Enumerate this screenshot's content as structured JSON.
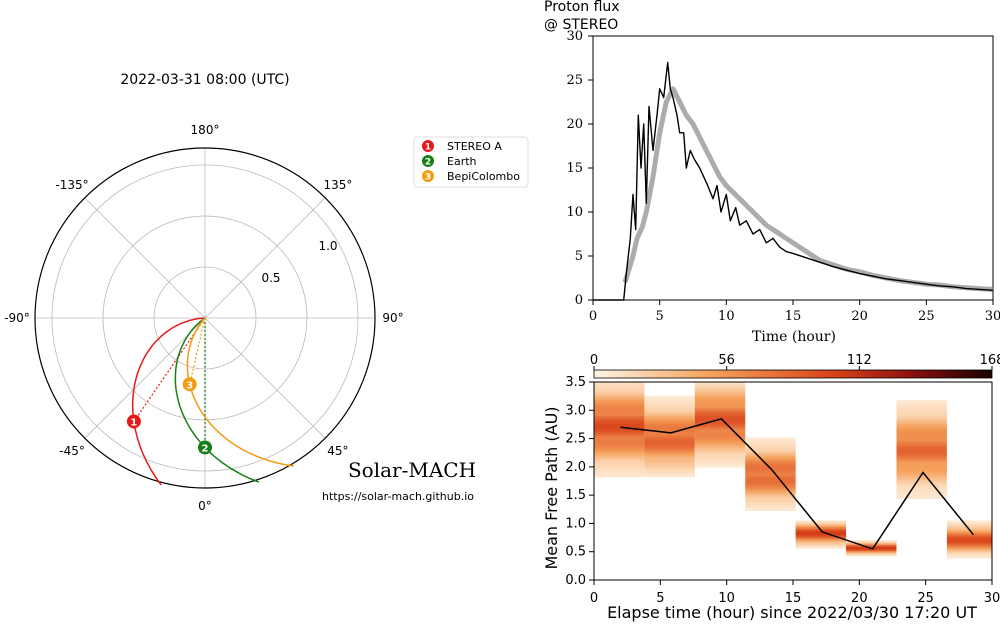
{
  "chart_data": [
    {
      "type": "polar",
      "title": "2022-03-31 08:00 (UTC)",
      "angle_labels": [
        "180°",
        "135°",
        "90°",
        "45°",
        "0°",
        "-45°",
        "-90°",
        "-135°"
      ],
      "radial_labels": [
        "0.5",
        "1.0"
      ],
      "rlim": [
        0,
        1.3
      ],
      "grid": true,
      "legend": {
        "position": "right",
        "entries": [
          {
            "num": "1",
            "name": "STEREO A",
            "color": "#e8191b",
            "r": 0.96,
            "lon": -34.5
          },
          {
            "num": "2",
            "name": "Earth",
            "color": "#168016",
            "r": 0.99,
            "lon": 0
          },
          {
            "num": "3",
            "name": "BepiColombo",
            "color": "#f39c12",
            "r": 0.52,
            "lon": -13
          }
        ]
      },
      "watermark": "Solar-MACH",
      "url": "https://solar-mach.github.io"
    },
    {
      "type": "line",
      "title": "Proton flux\n@ STEREO",
      "xlabel": "Time (hour)",
      "ylabel": "",
      "xlim": [
        0,
        30
      ],
      "ylim": [
        0,
        30
      ],
      "xticks": [
        0,
        5,
        10,
        15,
        20,
        25,
        30
      ],
      "yticks": [
        0,
        5,
        10,
        15,
        20,
        25,
        30
      ],
      "series": [
        {
          "color": "#000000",
          "x": [
            0,
            2.3,
            2.5,
            2.8,
            3.0,
            3.2,
            3.4,
            3.6,
            3.8,
            4.0,
            4.2,
            4.5,
            4.8,
            5.0,
            5.3,
            5.6,
            5.8,
            6.0,
            6.3,
            6.5,
            6.8,
            7.0,
            7.3,
            7.6,
            8.0,
            8.3,
            8.6,
            9.0,
            9.3,
            9.6,
            10.0,
            10.3,
            10.7,
            11.0,
            11.5,
            12.0,
            12.5,
            13.0,
            13.5,
            14.0,
            14.5,
            15.0,
            16.0,
            17.0,
            18.0,
            19.0,
            20.0,
            21.0,
            22.0,
            23.0,
            24.0,
            25.0,
            26.0,
            27.0,
            28.0,
            29.0,
            30.0
          ],
          "y": [
            0,
            0,
            3,
            7,
            12,
            8,
            21,
            15,
            20,
            11,
            22,
            17,
            21,
            24,
            23,
            27,
            24,
            23,
            21,
            19,
            19,
            15,
            17,
            16,
            15,
            14,
            13,
            11.5,
            13,
            10,
            12,
            9,
            10.5,
            8.5,
            9,
            7.5,
            8,
            6.5,
            7,
            6,
            5.5,
            5.3,
            4.8,
            4.3,
            3.8,
            3.4,
            3.0,
            2.7,
            2.4,
            2.2,
            2.0,
            1.8,
            1.6,
            1.5,
            1.3,
            1.2,
            1.1
          ]
        },
        {
          "color": "#909090",
          "x": [
            2.4,
            3.0,
            3.3,
            3.7,
            4.0,
            4.5,
            5.0,
            5.5,
            6.0,
            6.5,
            7.0,
            7.5,
            8.0,
            8.5,
            9.0,
            9.5,
            10.0,
            11.0,
            12.0,
            13.0,
            14.0,
            15.0,
            16.0,
            17.0,
            18.0,
            19.0,
            20.0,
            21.0,
            22.0,
            23.0,
            24.0,
            25.0,
            26.0,
            27.0,
            28.0,
            29.0,
            30.0
          ],
          "y": [
            2,
            5,
            7,
            8.3,
            10,
            14,
            19,
            22.5,
            24,
            22.5,
            21,
            20,
            18.5,
            17,
            15.5,
            14,
            13,
            11.5,
            10,
            8.5,
            7.5,
            6.5,
            5.5,
            4.5,
            4.0,
            3.5,
            3.2,
            2.8,
            2.5,
            2.2,
            2.0,
            1.8,
            1.7,
            1.5,
            1.4,
            1.3,
            1.2
          ]
        }
      ]
    },
    {
      "type": "heatmap",
      "xlabel": "Elapse time (hour) since 2022/03/30 17:20 UT",
      "ylabel": "Mean Free Path (AU)",
      "xlim": [
        0,
        30
      ],
      "ylim": [
        0,
        3.5
      ],
      "xticks": [
        0,
        5,
        10,
        15,
        20,
        25,
        30
      ],
      "yticks": [
        0.0,
        0.5,
        1.0,
        1.5,
        2.0,
        2.5,
        3.0,
        3.5
      ],
      "colorbar": {
        "ticks": [
          0,
          56,
          112,
          168
        ],
        "range": [
          0,
          168
        ]
      },
      "bins": [
        {
          "x0": 0,
          "x1": 3.8,
          "center": 2.7,
          "spread": 0.55,
          "peak": 0.9
        },
        {
          "x0": 3.8,
          "x1": 7.6,
          "center": 2.5,
          "spread": 0.45,
          "peak": 0.8
        },
        {
          "x0": 7.6,
          "x1": 11.4,
          "center": 2.8,
          "spread": 0.5,
          "peak": 0.85
        },
        {
          "x0": 11.4,
          "x1": 15.2,
          "center": 1.85,
          "spread": 0.4,
          "peak": 0.8
        },
        {
          "x0": 15.2,
          "x1": 19.0,
          "center": 0.8,
          "spread": 0.15,
          "peak": 1.0
        },
        {
          "x0": 19.0,
          "x1": 22.8,
          "center": 0.55,
          "spread": 0.08,
          "peak": 1.0
        },
        {
          "x0": 22.8,
          "x1": 26.6,
          "center": 2.3,
          "spread": 0.55,
          "peak": 0.75
        },
        {
          "x0": 26.6,
          "x1": 30.0,
          "center": 0.7,
          "spread": 0.2,
          "peak": 0.9
        }
      ],
      "series": [
        {
          "color": "#000000",
          "x": [
            2,
            5.8,
            9.6,
            13.4,
            17.2,
            21.0,
            24.8,
            28.6
          ],
          "y": [
            2.7,
            2.6,
            2.85,
            1.95,
            0.85,
            0.55,
            1.9,
            0.8
          ]
        }
      ]
    }
  ]
}
